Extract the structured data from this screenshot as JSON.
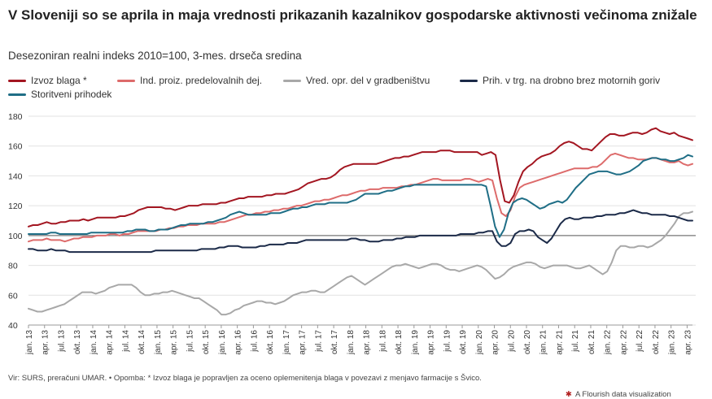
{
  "chart_data": {
    "type": "line",
    "title": "V Sloveniji so se aprila in maja vrednosti prikazanih kazalnikov gospodarske aktivnosti večinoma znižale",
    "subtitle": "Desezoniran realni indeks 2010=100, 3-mes. drseča sredina",
    "ylim": [
      40,
      180
    ],
    "yticks": [
      40,
      60,
      80,
      100,
      120,
      140,
      160,
      180
    ],
    "reference_line": 100,
    "grid": "horizontal",
    "legend_position": "top",
    "x_tick_labels": [
      "jan. 13",
      "apr. 13",
      "jul. 13",
      "okt. 13",
      "jan. 14",
      "apr. 14",
      "jul. 14",
      "okt. 14",
      "jan. 15",
      "apr. 15",
      "jul. 15",
      "okt. 15",
      "jan. 16",
      "apr. 16",
      "jul. 16",
      "okt. 16",
      "jan. 17",
      "apr. 17",
      "jul. 17",
      "okt. 17",
      "jan. 18",
      "apr. 18",
      "jul. 18",
      "okt. 18",
      "jan. 19",
      "apr. 19",
      "jul. 19",
      "okt. 19",
      "jan. 20",
      "apr. 20",
      "jul. 20",
      "okt. 20",
      "jan. 21",
      "apr. 21",
      "jul. 21",
      "okt. 21",
      "jan. 22",
      "apr. 22",
      "jul. 22",
      "okt. 22",
      "jan. 23",
      "apr. 23"
    ],
    "x_start": "2013-01",
    "x_end": "2023-05",
    "series": [
      {
        "name": "Izvoz blaga *",
        "color": "#a31621",
        "values": [
          106,
          107,
          107,
          108,
          109,
          108,
          108,
          109,
          109,
          110,
          110,
          110,
          111,
          110,
          111,
          112,
          112,
          112,
          112,
          112,
          113,
          113,
          114,
          115,
          117,
          118,
          119,
          119,
          119,
          119,
          118,
          118,
          117,
          118,
          119,
          120,
          120,
          120,
          121,
          121,
          121,
          121,
          122,
          122,
          123,
          124,
          125,
          125,
          126,
          126,
          126,
          126,
          127,
          127,
          128,
          128,
          128,
          129,
          130,
          131,
          133,
          135,
          136,
          137,
          138,
          138,
          139,
          141,
          144,
          146,
          147,
          148,
          148,
          148,
          148,
          148,
          148,
          149,
          150,
          151,
          152,
          152,
          153,
          153,
          154,
          155,
          156,
          156,
          156,
          156,
          157,
          157,
          157,
          156,
          156,
          156,
          156,
          156,
          156,
          154,
          155,
          156,
          154,
          137,
          123,
          122,
          127,
          136,
          143,
          146,
          148,
          151,
          153,
          154,
          155,
          157,
          160,
          162,
          163,
          162,
          160,
          158,
          158,
          157,
          160,
          163,
          166,
          168,
          168,
          167,
          167,
          168,
          169,
          169,
          168,
          169,
          171,
          172,
          170,
          169,
          168,
          169,
          167,
          166,
          165,
          164
        ]
      },
      {
        "name": "Ind. proiz. predelovalnih dej.",
        "color": "#dd6b6b",
        "values": [
          96,
          97,
          97,
          97,
          98,
          97,
          97,
          97,
          96,
          97,
          98,
          98,
          99,
          99,
          99,
          100,
          100,
          100,
          101,
          101,
          100,
          101,
          101,
          102,
          103,
          103,
          103,
          103,
          103,
          104,
          104,
          105,
          105,
          106,
          106,
          107,
          107,
          107,
          108,
          108,
          108,
          108,
          109,
          109,
          110,
          111,
          112,
          113,
          114,
          114,
          115,
          115,
          116,
          116,
          117,
          117,
          118,
          118,
          119,
          120,
          120,
          121,
          122,
          123,
          123,
          124,
          124,
          125,
          126,
          127,
          127,
          128,
          129,
          130,
          130,
          131,
          131,
          131,
          132,
          132,
          132,
          132,
          133,
          133,
          134,
          134,
          135,
          136,
          137,
          138,
          138,
          137,
          137,
          137,
          137,
          137,
          138,
          138,
          137,
          136,
          137,
          138,
          137,
          125,
          115,
          113,
          117,
          126,
          132,
          134,
          135,
          136,
          137,
          138,
          139,
          140,
          141,
          142,
          143,
          144,
          145,
          145,
          145,
          145,
          146,
          146,
          148,
          151,
          154,
          155,
          154,
          153,
          152,
          152,
          151,
          151,
          151,
          152,
          152,
          151,
          150,
          149,
          149,
          150,
          148,
          147,
          148
        ]
      },
      {
        "name": "Vred. opr. del v gradbeništvu",
        "color": "#a8a8a8",
        "values": [
          51,
          50,
          49,
          49,
          50,
          51,
          52,
          53,
          54,
          56,
          58,
          60,
          62,
          62,
          62,
          61,
          62,
          63,
          65,
          66,
          67,
          67,
          67,
          67,
          65,
          62,
          60,
          60,
          61,
          61,
          62,
          62,
          63,
          62,
          61,
          60,
          59,
          58,
          58,
          56,
          54,
          52,
          50,
          47,
          47,
          48,
          50,
          51,
          53,
          54,
          55,
          56,
          56,
          55,
          55,
          54,
          55,
          56,
          58,
          60,
          61,
          62,
          62,
          63,
          63,
          62,
          62,
          64,
          66,
          68,
          70,
          72,
          73,
          71,
          69,
          67,
          69,
          71,
          73,
          75,
          77,
          79,
          80,
          80,
          81,
          80,
          79,
          78,
          79,
          80,
          81,
          81,
          80,
          78,
          77,
          77,
          76,
          77,
          78,
          79,
          80,
          79,
          77,
          74,
          71,
          72,
          74,
          77,
          79,
          80,
          81,
          82,
          82,
          81,
          79,
          78,
          79,
          80,
          80,
          80,
          80,
          79,
          78,
          78,
          79,
          80,
          78,
          76,
          74,
          76,
          82,
          90,
          93,
          93,
          92,
          92,
          93,
          93,
          92,
          93,
          95,
          97,
          100,
          104,
          108,
          113,
          115,
          115,
          116
        ]
      },
      {
        "name": "Prih. v trg. na drobno brez motornih goriv",
        "color": "#1b2a48",
        "values": [
          91,
          91,
          90,
          90,
          90,
          91,
          90,
          90,
          90,
          89,
          89,
          89,
          89,
          89,
          89,
          89,
          89,
          89,
          89,
          89,
          89,
          89,
          89,
          89,
          89,
          89,
          89,
          89,
          90,
          90,
          90,
          90,
          90,
          90,
          90,
          90,
          90,
          90,
          91,
          91,
          91,
          91,
          92,
          92,
          93,
          93,
          93,
          92,
          92,
          92,
          92,
          93,
          93,
          94,
          94,
          94,
          94,
          95,
          95,
          95,
          96,
          97,
          97,
          97,
          97,
          97,
          97,
          97,
          97,
          97,
          97,
          98,
          98,
          97,
          97,
          96,
          96,
          96,
          97,
          97,
          97,
          98,
          98,
          99,
          99,
          99,
          100,
          100,
          100,
          100,
          100,
          100,
          100,
          100,
          100,
          101,
          101,
          101,
          101,
          102,
          102,
          103,
          103,
          96,
          93,
          93,
          95,
          101,
          103,
          103,
          104,
          103,
          99,
          97,
          95,
          98,
          103,
          108,
          111,
          112,
          111,
          111,
          112,
          112,
          112,
          113,
          113,
          114,
          114,
          114,
          115,
          115,
          116,
          117,
          116,
          115,
          115,
          114,
          114,
          114,
          114,
          113,
          113,
          112,
          111,
          110,
          110
        ]
      },
      {
        "name": "Storitveni prihodek",
        "color": "#1f6e86",
        "values": [
          101,
          101,
          101,
          101,
          101,
          102,
          102,
          101,
          101,
          101,
          101,
          101,
          101,
          101,
          102,
          102,
          102,
          102,
          102,
          102,
          102,
          102,
          103,
          103,
          104,
          104,
          104,
          103,
          103,
          104,
          104,
          104,
          105,
          106,
          107,
          107,
          108,
          108,
          108,
          108,
          109,
          109,
          110,
          111,
          112,
          114,
          115,
          116,
          115,
          114,
          114,
          114,
          114,
          114,
          115,
          115,
          115,
          116,
          117,
          118,
          118,
          119,
          119,
          120,
          121,
          121,
          121,
          122,
          122,
          122,
          122,
          122,
          123,
          124,
          126,
          128,
          128,
          128,
          128,
          129,
          130,
          130,
          131,
          132,
          133,
          133,
          134,
          134,
          134,
          134,
          134,
          134,
          134,
          134,
          134,
          134,
          134,
          134,
          134,
          134,
          134,
          134,
          133,
          120,
          106,
          99,
          104,
          115,
          122,
          124,
          125,
          124,
          122,
          120,
          118,
          119,
          121,
          122,
          123,
          122,
          124,
          128,
          132,
          135,
          138,
          141,
          142,
          143,
          143,
          143,
          142,
          141,
          141,
          142,
          143,
          145,
          147,
          150,
          151,
          152,
          152,
          151,
          151,
          150,
          150,
          151,
          152,
          154,
          153
        ]
      }
    ]
  },
  "source_text": "Vir: SURS, preračuni UMAR. • Opomba: * Izvoz blaga je popravljen za oceno oplemenitenja blaga v povezavi z menjavo farmacije s Švico.",
  "credit_text": "A Flourish data visualization",
  "credit_icon": "flourish-logo-icon"
}
